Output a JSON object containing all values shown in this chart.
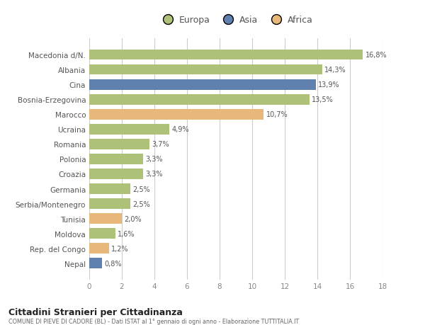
{
  "categories": [
    "Macedonia d/N.",
    "Albania",
    "Cina",
    "Bosnia-Erzegovina",
    "Marocco",
    "Ucraina",
    "Romania",
    "Polonia",
    "Croazia",
    "Germania",
    "Serbia/Montenegro",
    "Tunisia",
    "Moldova",
    "Rep. del Congo",
    "Nepal"
  ],
  "values": [
    16.8,
    14.3,
    13.9,
    13.5,
    10.7,
    4.9,
    3.7,
    3.3,
    3.3,
    2.5,
    2.5,
    2.0,
    1.6,
    1.2,
    0.8
  ],
  "labels": [
    "16,8%",
    "14,3%",
    "13,9%",
    "13,5%",
    "10,7%",
    "4,9%",
    "3,7%",
    "3,3%",
    "3,3%",
    "2,5%",
    "2,5%",
    "2,0%",
    "1,6%",
    "1,2%",
    "0,8%"
  ],
  "colors": [
    "#adc178",
    "#adc178",
    "#6080b0",
    "#adc178",
    "#e8b87a",
    "#adc178",
    "#adc178",
    "#adc178",
    "#adc178",
    "#adc178",
    "#adc178",
    "#e8b87a",
    "#adc178",
    "#e8b87a",
    "#6080b0"
  ],
  "legend_labels": [
    "Europa",
    "Asia",
    "Africa"
  ],
  "legend_colors": [
    "#adc178",
    "#6080b0",
    "#e8b87a"
  ],
  "title": "Cittadini Stranieri per Cittadinanza",
  "subtitle": "COMUNE DI PIEVE DI CADORE (BL) - Dati ISTAT al 1° gennaio di ogni anno - Elaborazione TUTTITALIA.IT",
  "xlim": [
    0,
    18
  ],
  "xticks": [
    0,
    2,
    4,
    6,
    8,
    10,
    12,
    14,
    16,
    18
  ],
  "bg_color": "#ffffff",
  "bar_height": 0.7
}
